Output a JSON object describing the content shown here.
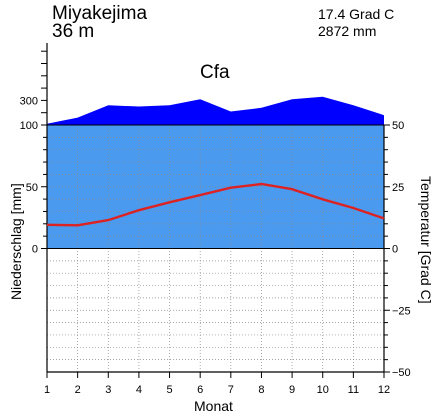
{
  "chart_data": {
    "type": "climate-diagram",
    "station": "Miyakejima",
    "elevation": "36 m",
    "annual_temperature": "17.4 Grad C",
    "annual_precipitation": "2872 mm",
    "climate_class": "Cfa",
    "xlabel": "Monat",
    "ylabel_left": "Niederschlag [mm]",
    "ylabel_right": "Temperatur [Grad C]",
    "months": [
      1,
      2,
      3,
      4,
      5,
      6,
      7,
      8,
      9,
      10,
      11,
      12
    ],
    "x_ticks": [
      "1",
      "2",
      "3",
      "4",
      "5",
      "6",
      "7",
      "8",
      "9",
      "10",
      "11",
      "12"
    ],
    "left_ticks": [
      {
        "value": 0,
        "label": "0"
      },
      {
        "value": 50,
        "label": "50"
      },
      {
        "value": 100,
        "label": "100"
      },
      {
        "value": 300,
        "label": "300"
      }
    ],
    "right_ticks": [
      {
        "value": -50,
        "label": "−50"
      },
      {
        "value": -25,
        "label": "−25"
      },
      {
        "value": 0,
        "label": "0"
      },
      {
        "value": 25,
        "label": "25"
      },
      {
        "value": 50,
        "label": "50"
      }
    ],
    "temperature": {
      "name": "Temperatur",
      "values": [
        9.6,
        9.4,
        11.5,
        15.5,
        18.7,
        21.6,
        24.6,
        26.1,
        24.0,
        19.9,
        16.4,
        12.2
      ]
    },
    "precipitation": {
      "name": "Niederschlag",
      "values": [
        110,
        160,
        260,
        250,
        260,
        310,
        210,
        240,
        310,
        330,
        260,
        180
      ]
    },
    "ylim_temperature": [
      -50,
      50
    ],
    "ylim_precipitation_linear": [
      -100,
      100
    ],
    "grid": true,
    "colors": {
      "humid": "#4a9af0",
      "perhumid": "#0000ff",
      "temperature": "#dd2222",
      "grid": "#888888",
      "axis": "#000000"
    }
  }
}
